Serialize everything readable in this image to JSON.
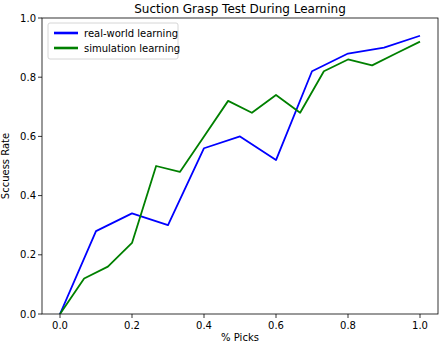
{
  "chart_data": {
    "type": "line",
    "title": "Suction Grasp Test During Learning",
    "x_label": "% Picks",
    "y_label": "Sccuess Rate",
    "xlim": [
      -0.05,
      1.05
    ],
    "ylim": [
      0.0,
      1.0
    ],
    "xticks": [
      {
        "value": 0,
        "label": "0.0"
      },
      {
        "value": 0.2,
        "label": "0.2"
      },
      {
        "value": 0.4,
        "label": "0.4"
      },
      {
        "value": 0.6,
        "label": "0.6"
      },
      {
        "value": 0.8,
        "label": "0.8"
      },
      {
        "value": 1,
        "label": "1.0"
      }
    ],
    "yticks": [
      {
        "value": 0,
        "label": "0.0"
      },
      {
        "value": 0.2,
        "label": "0.2"
      },
      {
        "value": 0.4,
        "label": "0.4"
      },
      {
        "value": 0.6,
        "label": "0.6"
      },
      {
        "value": 0.8,
        "label": "0.8"
      },
      {
        "value": 1,
        "label": "1.0"
      }
    ],
    "grid": false,
    "legend": "upper left",
    "series": [
      {
        "name": "real-world learning",
        "color": "#0000ff",
        "x": [
          0,
          0.1,
          0.2,
          0.3,
          0.4,
          0.5,
          0.6,
          0.7,
          0.8,
          0.9,
          1.0
        ],
        "values": [
          0,
          0.28,
          0.34,
          0.3,
          0.56,
          0.6,
          0.52,
          0.82,
          0.88,
          0.9,
          0.94
        ]
      },
      {
        "name": "simulation learning",
        "color": "#008000",
        "x": [
          0,
          0.067,
          0.133,
          0.2,
          0.267,
          0.333,
          0.4,
          0.467,
          0.533,
          0.6,
          0.667,
          0.733,
          0.8,
          0.867,
          0.933,
          1.0
        ],
        "values": [
          0,
          0.12,
          0.16,
          0.24,
          0.5,
          0.48,
          0.6,
          0.72,
          0.68,
          0.74,
          0.68,
          0.82,
          0.86,
          0.84,
          0.88,
          0.92
        ]
      }
    ]
  }
}
